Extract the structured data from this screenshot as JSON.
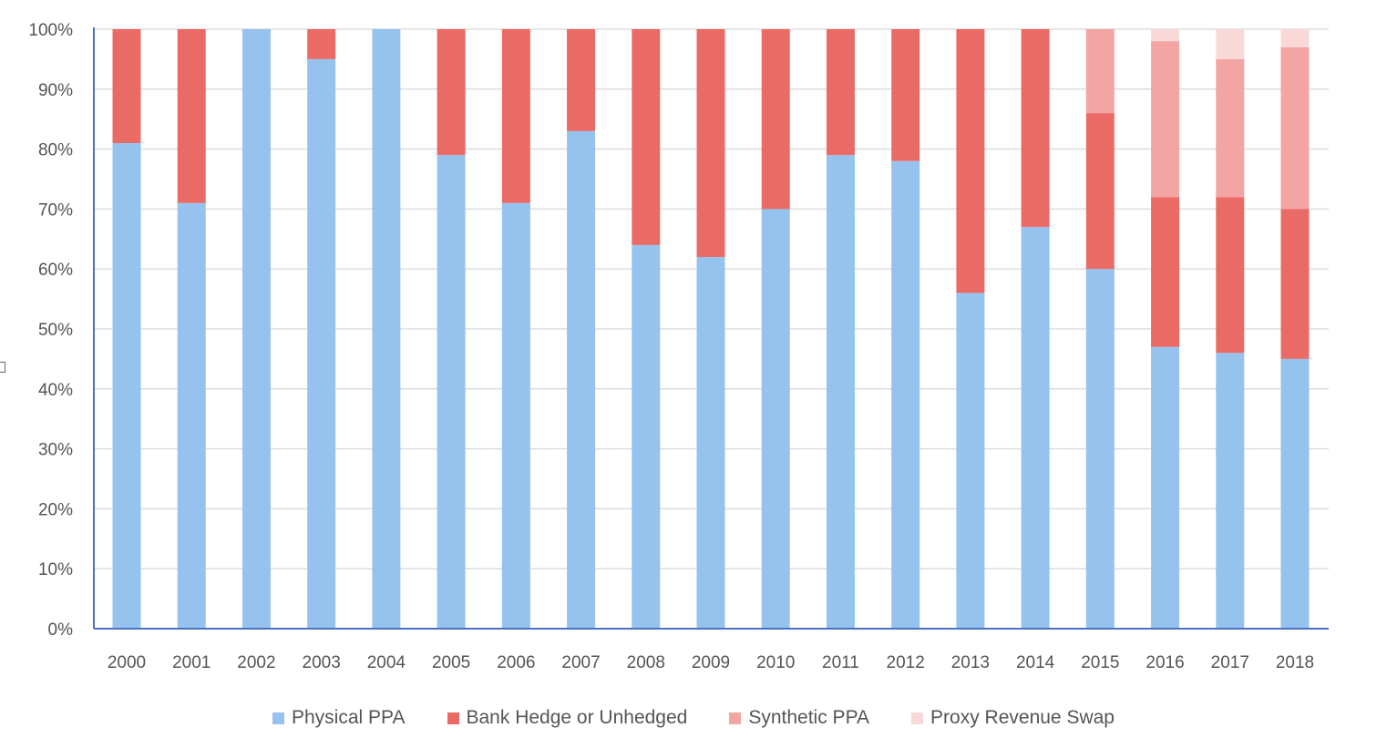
{
  "chart_data": {
    "type": "bar",
    "stacked": true,
    "categories": [
      "2000",
      "2001",
      "2002",
      "2003",
      "2004",
      "2005",
      "2006",
      "2007",
      "2008",
      "2009",
      "2010",
      "2011",
      "2012",
      "2013",
      "2014",
      "2015",
      "2016",
      "2017",
      "2018"
    ],
    "series": [
      {
        "name": "Physical PPA",
        "color": "#96C2EE",
        "values": [
          81,
          71,
          100,
          95,
          100,
          79,
          71,
          83,
          64,
          62,
          70,
          79,
          78,
          56,
          67,
          60,
          47,
          46,
          45
        ]
      },
      {
        "name": "Bank Hedge or Unhedged",
        "color": "#EA6B66",
        "values": [
          19,
          29,
          0,
          5,
          0,
          21,
          29,
          17,
          36,
          38,
          30,
          21,
          22,
          44,
          33,
          26,
          25,
          26,
          25
        ]
      },
      {
        "name": "Synthetic PPA",
        "color": "#F2A5A3",
        "values": [
          0,
          0,
          0,
          0,
          0,
          0,
          0,
          0,
          0,
          0,
          0,
          0,
          0,
          0,
          0,
          14,
          26,
          23,
          27
        ]
      },
      {
        "name": "Proxy Revenue Swap",
        "color": "#F9D9D8",
        "values": [
          0,
          0,
          0,
          0,
          0,
          0,
          0,
          0,
          0,
          0,
          0,
          0,
          0,
          0,
          0,
          0,
          2,
          5,
          3
        ]
      }
    ],
    "y_ticks": [
      "0%",
      "10%",
      "20%",
      "30%",
      "40%",
      "50%",
      "60%",
      "70%",
      "80%",
      "90%",
      "100%"
    ],
    "ylim": [
      0,
      100
    ],
    "grid": true,
    "legend_position": "bottom",
    "title": "",
    "xlabel": "",
    "ylabel": ""
  }
}
